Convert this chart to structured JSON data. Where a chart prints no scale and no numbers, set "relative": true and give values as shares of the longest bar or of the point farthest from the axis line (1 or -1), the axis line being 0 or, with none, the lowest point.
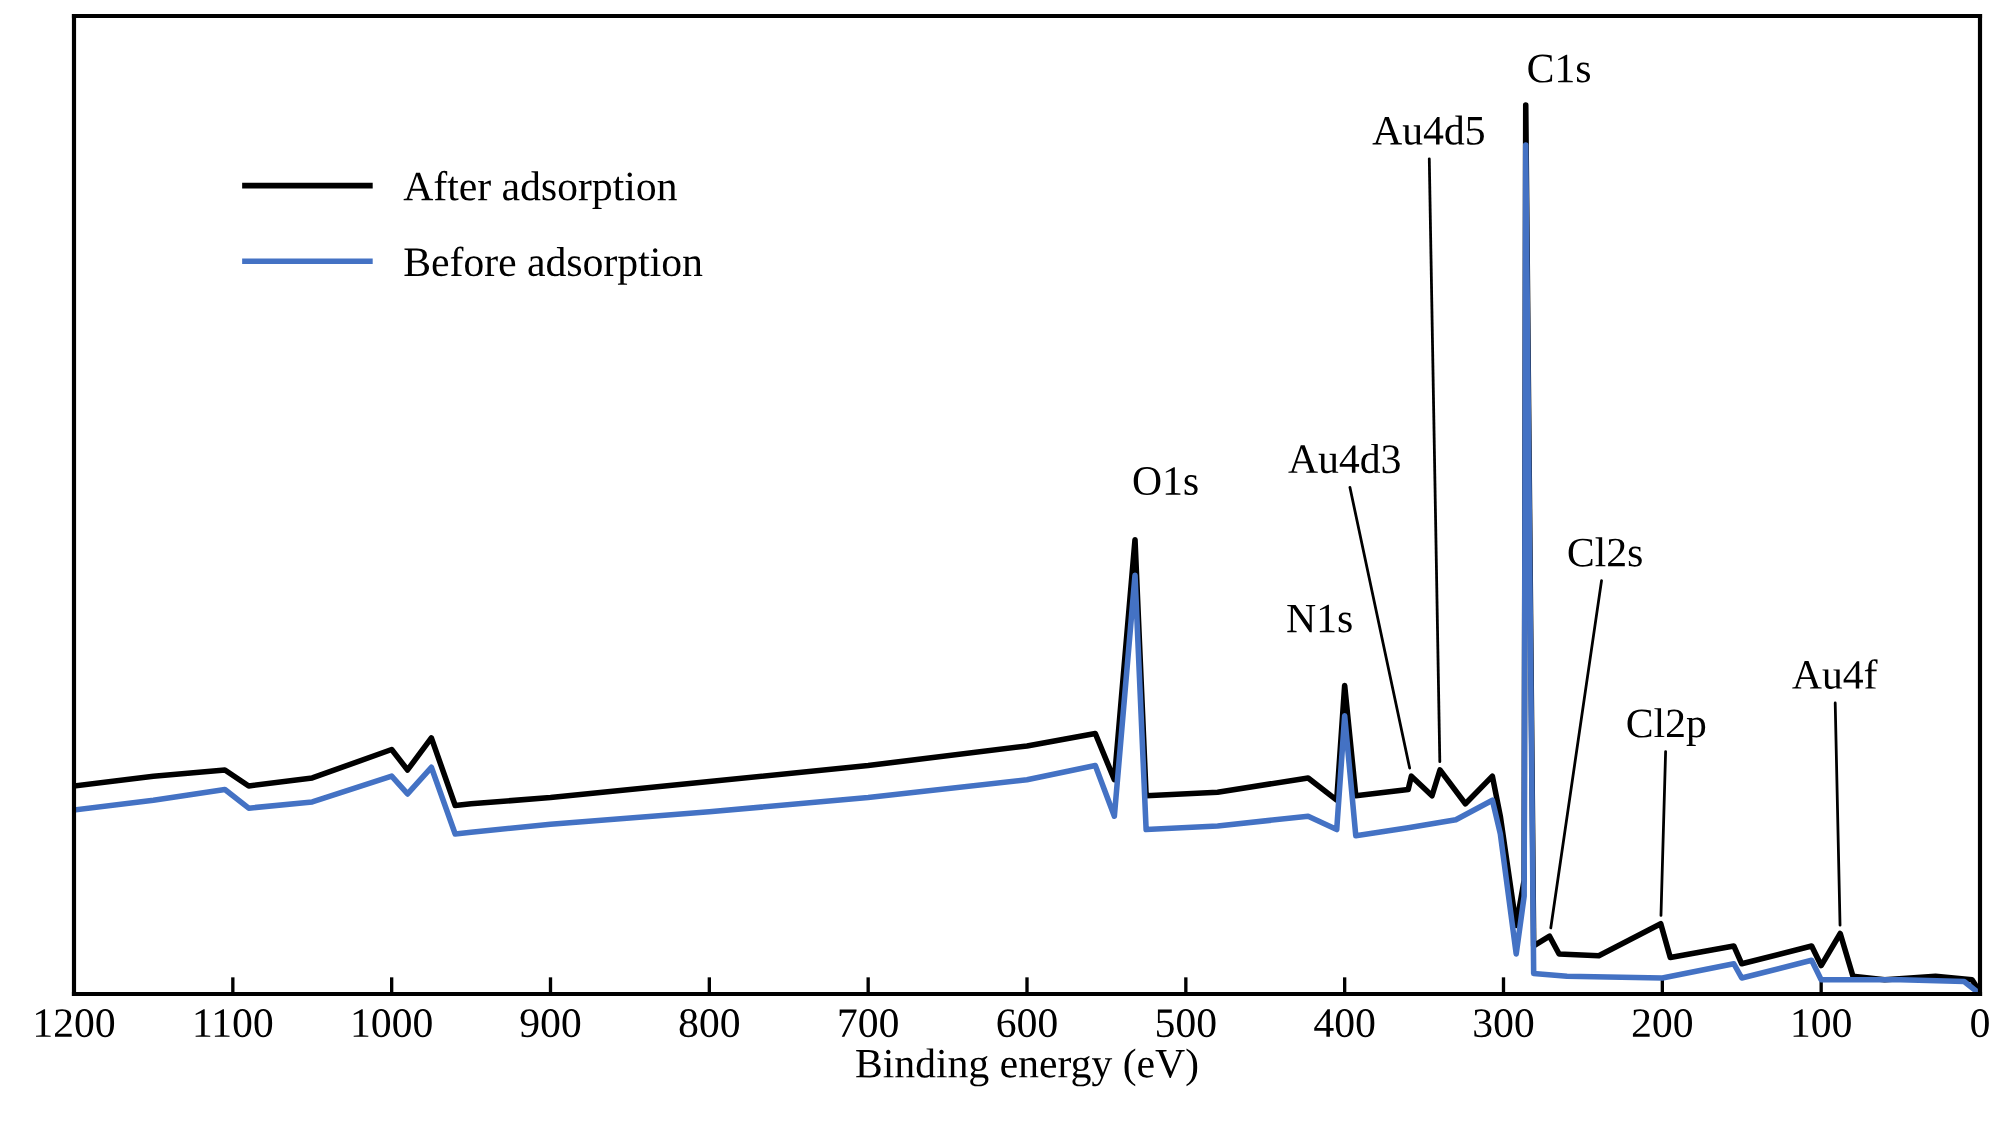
{
  "chart_data": {
    "type": "line",
    "relative": true,
    "xlabel": "Binding energy (eV)",
    "xlim": [
      1200,
      0
    ],
    "xticks": [
      1200,
      1100,
      1000,
      900,
      800,
      700,
      600,
      500,
      400,
      300,
      200,
      100,
      0
    ],
    "grid": false,
    "legend": "top left",
    "marker": "none",
    "line_style": "solid",
    "series": [
      {
        "name": "After adsorption",
        "color": "#000000",
        "x": [
          1200,
          1150,
          1105,
          1090,
          1050,
          1000,
          990,
          975,
          960,
          950,
          900,
          800,
          700,
          600,
          557,
          545,
          532,
          525,
          480,
          423,
          405,
          400,
          393,
          360,
          358,
          345,
          340,
          324,
          307,
          302,
          292,
          287,
          286,
          281,
          271,
          265,
          240,
          201,
          195,
          155,
          150,
          106,
          100,
          88,
          80,
          60,
          28,
          5,
          0
        ],
        "values": [
          0.234,
          0.245,
          0.252,
          0.234,
          0.243,
          0.275,
          0.252,
          0.288,
          0.212,
          0.214,
          0.221,
          0.239,
          0.257,
          0.279,
          0.293,
          0.241,
          0.511,
          0.223,
          0.227,
          0.243,
          0.218,
          0.347,
          0.223,
          0.23,
          0.245,
          0.223,
          0.252,
          0.214,
          0.245,
          0.2,
          0.077,
          0.128,
          1.0,
          0.054,
          0.065,
          0.045,
          0.043,
          0.079,
          0.041,
          0.054,
          0.034,
          0.054,
          0.032,
          0.068,
          0.02,
          0.016,
          0.02,
          0.016,
          0.002
        ]
      },
      {
        "name": "Before adsorption",
        "color": "#4472c4",
        "x": [
          1200,
          1150,
          1105,
          1090,
          1050,
          1000,
          990,
          975,
          960,
          950,
          900,
          800,
          700,
          600,
          557,
          545,
          532,
          525,
          480,
          423,
          405,
          400,
          393,
          360,
          330,
          307,
          302,
          292,
          287,
          286,
          281,
          260,
          200,
          155,
          150,
          106,
          100,
          50,
          10,
          0
        ],
        "values": [
          0.207,
          0.218,
          0.23,
          0.209,
          0.216,
          0.245,
          0.225,
          0.255,
          0.18,
          0.182,
          0.191,
          0.205,
          0.221,
          0.241,
          0.257,
          0.2,
          0.471,
          0.185,
          0.189,
          0.2,
          0.185,
          0.313,
          0.178,
          0.187,
          0.196,
          0.218,
          0.18,
          0.045,
          0.11,
          0.955,
          0.023,
          0.02,
          0.018,
          0.034,
          0.018,
          0.038,
          0.016,
          0.016,
          0.014,
          0.0
        ]
      }
    ],
    "annotations": [
      {
        "text": "C1s",
        "x": 286,
        "y": 1.0
      },
      {
        "text": "O1s",
        "x": 532,
        "y": 0.511
      },
      {
        "text": "N1s",
        "x": 400,
        "y": 0.347
      },
      {
        "text": "Au4d3",
        "x": 358,
        "y": 0.245
      },
      {
        "text": "Au4d5",
        "x": 340,
        "y": 0.252
      },
      {
        "text": "Cl2s",
        "x": 271,
        "y": 0.065
      },
      {
        "text": "Cl2p",
        "x": 201,
        "y": 0.079
      },
      {
        "text": "Au4f",
        "x": 88,
        "y": 0.068
      }
    ]
  }
}
